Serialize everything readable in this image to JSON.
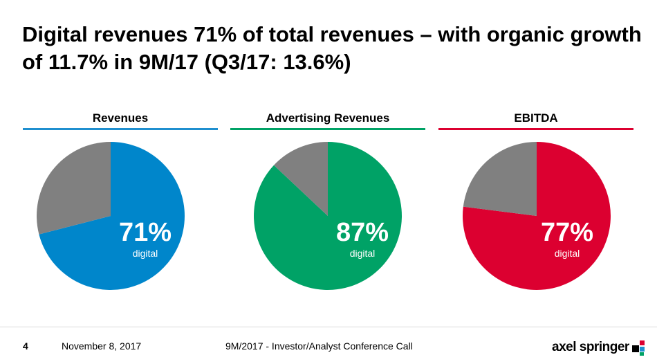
{
  "title": "Digital revenues 71% of total revenues – with organic growth of 11.7% in 9M/17 (Q3/17: 13.6%)",
  "chart_data": [
    {
      "type": "pie",
      "title": "Revenues",
      "slices": [
        {
          "label": "digital",
          "value": 71,
          "color": "#0086cb"
        },
        {
          "label": "",
          "value": 29,
          "color": "#808080"
        }
      ],
      "center_value": "71%",
      "center_label": "digital",
      "accent": "#1f8fcf"
    },
    {
      "type": "pie",
      "title": "Advertising Revenues",
      "slices": [
        {
          "label": "digital",
          "value": 87,
          "color": "#00a266"
        },
        {
          "label": "",
          "value": 13,
          "color": "#808080"
        }
      ],
      "center_value": "87%",
      "center_label": "digital",
      "accent": "#00a266"
    },
    {
      "type": "pie",
      "title": "EBITDA",
      "slices": [
        {
          "label": "digital",
          "value": 77,
          "color": "#dc0030"
        },
        {
          "label": "",
          "value": 23,
          "color": "#808080"
        }
      ],
      "center_value": "77%",
      "center_label": "digital",
      "accent": "#dc0030"
    }
  ],
  "footer": {
    "page_number": "4",
    "date": "November 8, 2017",
    "event": "9M/2017 - Investor/Analyst Conference Call",
    "logo_text": "axel springer"
  }
}
